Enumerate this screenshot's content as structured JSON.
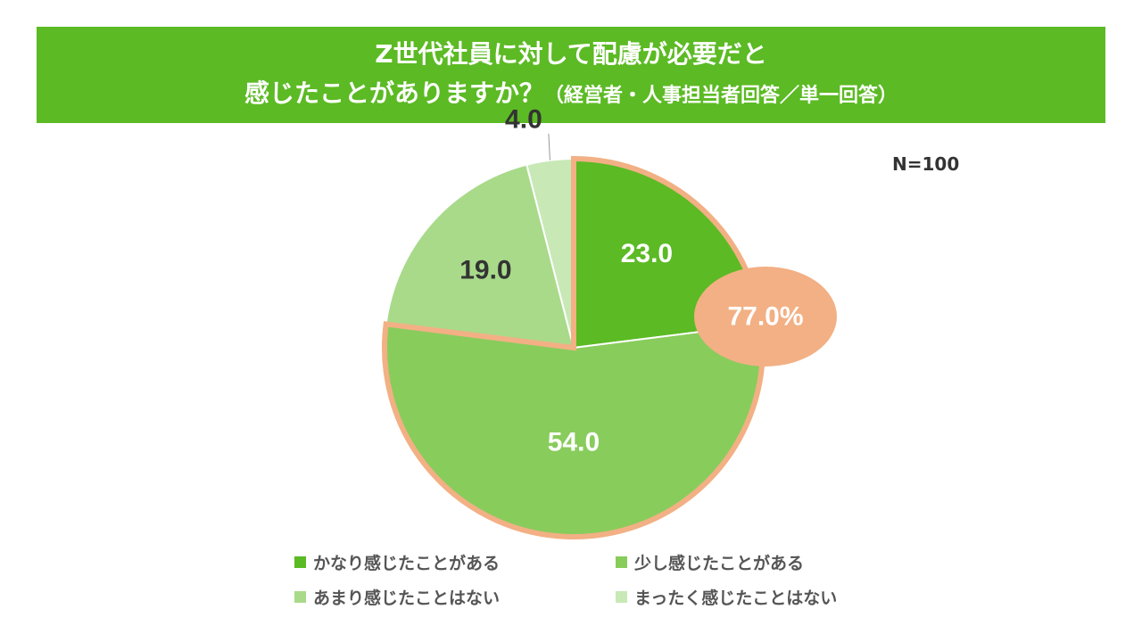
{
  "title": {
    "line1": "Z世代社員に対して配慮が必要だと",
    "line2": "感じたことがありますか？",
    "line2_sub": "（経営者・人事担当者回答／単一回答）"
  },
  "n_label": "N=100",
  "chart_data": {
    "type": "pie",
    "title": "Z世代社員に対して配慮が必要だと感じたことがありますか？（経営者・人事担当者回答／単一回答）",
    "categories": [
      "かなり感じたことがある",
      "少し感じたことがある",
      "あまり感じたことはない",
      "まったく感じたことはない"
    ],
    "values": [
      23.0,
      54.0,
      19.0,
      4.0
    ],
    "value_labels": [
      "23.0",
      "54.0",
      "19.0",
      "4.0"
    ],
    "colors": [
      "#5cba24",
      "#88cc5c",
      "#a8da8a",
      "#c8e8b6"
    ],
    "highlight": {
      "label": "77.0%",
      "categories": [
        "かなり感じたことがある",
        "少し感じたことがある"
      ],
      "color": "#f2b084"
    },
    "legend_position": "bottom"
  }
}
